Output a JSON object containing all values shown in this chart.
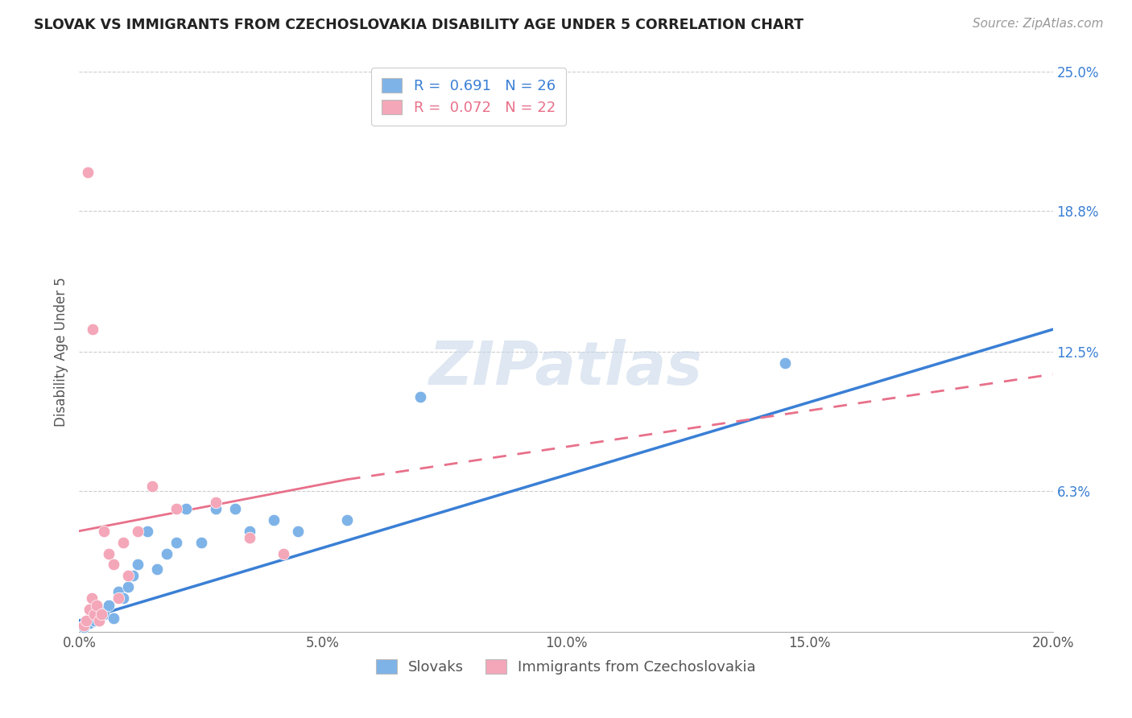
{
  "title": "SLOVAK VS IMMIGRANTS FROM CZECHOSLOVAKIA DISABILITY AGE UNDER 5 CORRELATION CHART",
  "source": "Source: ZipAtlas.com",
  "ylabel": "Disability Age Under 5",
  "xlim": [
    0.0,
    20.0
  ],
  "ylim": [
    0.0,
    25.0
  ],
  "blue_color": "#7EB3E8",
  "pink_color": "#F4A7B9",
  "blue_line_color": "#3A7FD5",
  "pink_line_color": "#E8708A",
  "blue_scatter_x": [
    0.1,
    0.2,
    0.3,
    0.4,
    0.5,
    0.6,
    0.7,
    0.8,
    0.9,
    1.0,
    1.1,
    1.2,
    1.4,
    1.6,
    1.8,
    2.0,
    2.2,
    2.5,
    2.8,
    3.2,
    3.5,
    4.0,
    4.5,
    5.5,
    7.0,
    14.5
  ],
  "blue_scatter_y": [
    0.2,
    0.4,
    0.5,
    1.0,
    0.8,
    1.2,
    0.6,
    1.8,
    1.5,
    2.0,
    2.5,
    3.0,
    4.5,
    2.8,
    3.5,
    4.0,
    5.5,
    4.0,
    5.5,
    5.5,
    4.5,
    5.0,
    4.5,
    5.0,
    10.5,
    12.0
  ],
  "pink_scatter_x": [
    0.1,
    0.15,
    0.2,
    0.25,
    0.3,
    0.35,
    0.4,
    0.45,
    0.5,
    0.6,
    0.7,
    0.8,
    0.9,
    1.0,
    1.2,
    1.5,
    2.0,
    2.8,
    3.5,
    4.2,
    0.18,
    0.28
  ],
  "pink_scatter_y": [
    0.3,
    0.5,
    1.0,
    1.5,
    0.8,
    1.2,
    0.5,
    0.8,
    4.5,
    3.5,
    3.0,
    1.5,
    4.0,
    2.5,
    4.5,
    6.5,
    5.5,
    5.8,
    4.2,
    3.5,
    20.5,
    13.5
  ],
  "blue_line_x0": 0.0,
  "blue_line_y0": 0.5,
  "blue_line_x1": 20.0,
  "blue_line_y1": 13.5,
  "pink_line_x0": 0.0,
  "pink_line_y0": 4.5,
  "pink_line_x1": 5.5,
  "pink_line_y1": 6.8,
  "pink_dash_x0": 5.5,
  "pink_dash_y0": 6.8,
  "pink_dash_x1": 20.0,
  "pink_dash_y1": 11.5,
  "legend_blue_label": "R =  0.691   N = 26",
  "legend_pink_label": "R =  0.072   N = 22",
  "bottom_legend_blue": "Slovaks",
  "bottom_legend_pink": "Immigrants from Czechoslovakia",
  "ytick_vals": [
    6.3,
    12.5,
    18.8,
    25.0
  ],
  "ytick_labels": [
    "6.3%",
    "12.5%",
    "18.8%",
    "25.0%"
  ],
  "xtick_vals": [
    0.0,
    5.0,
    10.0,
    15.0,
    20.0
  ],
  "xtick_labels": [
    "0.0%",
    "5.0%",
    "10.0%",
    "15.0%",
    "20.0%"
  ]
}
